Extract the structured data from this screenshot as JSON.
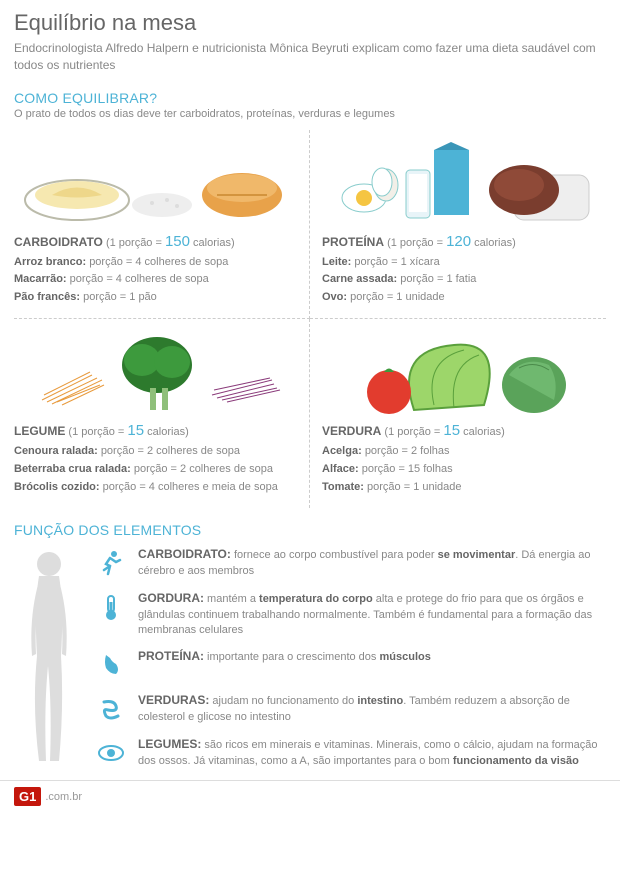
{
  "colors": {
    "accent": "#4db3d6",
    "text_muted": "#888",
    "text_strong": "#666",
    "g1_red": "#c4170c",
    "divider": "#ccc"
  },
  "header": {
    "title": "Equilíbrio na mesa",
    "subtitle": "Endocrinologista Alfredo Halpern e nutricionista Mônica Beyruti explicam como fazer uma dieta saudável com todos os nutrientes"
  },
  "como_equilibrar": {
    "heading": "COMO EQUILIBRAR?",
    "sub": "O prato de todos os dias deve ter carboidratos, proteínas, verduras e legumes"
  },
  "groups": [
    {
      "name": "CARBOIDRATO",
      "portion_prefix": "(1 porção = ",
      "calories": "150",
      "portion_suffix": " calorias)",
      "items": [
        {
          "label": "Arroz branco:",
          "value": "porção = 4 colheres de sopa"
        },
        {
          "label": "Macarrão:",
          "value": "porção = 4 colheres de sopa"
        },
        {
          "label": "Pão francês:",
          "value": "porção = 1 pão"
        }
      ]
    },
    {
      "name": "PROTEÍNA",
      "portion_prefix": "(1 porção = ",
      "calories": "120",
      "portion_suffix": " calorias)",
      "items": [
        {
          "label": "Leite:",
          "value": "porção = 1 xícara"
        },
        {
          "label": "Carne assada:",
          "value": "porção = 1 fatia"
        },
        {
          "label": "Ovo:",
          "value": "porção = 1 unidade"
        }
      ]
    },
    {
      "name": "LEGUME",
      "portion_prefix": "(1 porção = ",
      "calories": "15",
      "portion_suffix": " calorias)",
      "items": [
        {
          "label": "Cenoura ralada:",
          "value": "porção = 2 colheres de sopa"
        },
        {
          "label": "Beterraba crua ralada:",
          "value": "porção = 2 colheres de sopa"
        },
        {
          "label": "Brócolis cozido:",
          "value": "porção = 4 colheres e meia de sopa"
        }
      ]
    },
    {
      "name": "VERDURA",
      "portion_prefix": "(1 porção = ",
      "calories": "15",
      "portion_suffix": " calorias)",
      "items": [
        {
          "label": "Acelga:",
          "value": "porção = 2 folhas"
        },
        {
          "label": "Alface:",
          "value": "porção = 15 folhas"
        },
        {
          "label": "Tomate:",
          "value": "porção = 1 unidade"
        }
      ]
    }
  ],
  "funcoes": {
    "heading": "FUNÇÃO DOS ELEMENTOS",
    "list": [
      {
        "cat": "CARBOIDRATO:",
        "before": " fornece ao corpo combustível para poder ",
        "bold": "se movimentar",
        "after": ". Dá energia ao cérebro e aos membros",
        "icon": "runner"
      },
      {
        "cat": "GORDURA:",
        "before": " mantém a ",
        "bold": "temperatura do corpo",
        "after": " alta e protege do frio para que os órgãos e glândulas continuem trabalhando normalmente. Também é fundamental para a formação das membranas celulares",
        "icon": "thermometer"
      },
      {
        "cat": "PROTEÍNA:",
        "before": " importante para o crescimento dos ",
        "bold": "músculos",
        "after": "",
        "icon": "arm"
      },
      {
        "cat": "VERDURAS:",
        "before": " ajudam no funcionamento do ",
        "bold": "intestino",
        "after": ". Também reduzem a absorção de colesterol e glicose no intestino",
        "icon": "intestine"
      },
      {
        "cat": "LEGUMES:",
        "before": " são ricos em minerais e vitaminas. Minerais, como o cálcio, ajudam na formação dos ossos. Já vitaminas, como a A, são importantes para o bom ",
        "bold": "funcionamento da visão",
        "after": "",
        "icon": "eye"
      }
    ]
  },
  "footer": {
    "brand": "G1",
    "url": ".com.br"
  }
}
